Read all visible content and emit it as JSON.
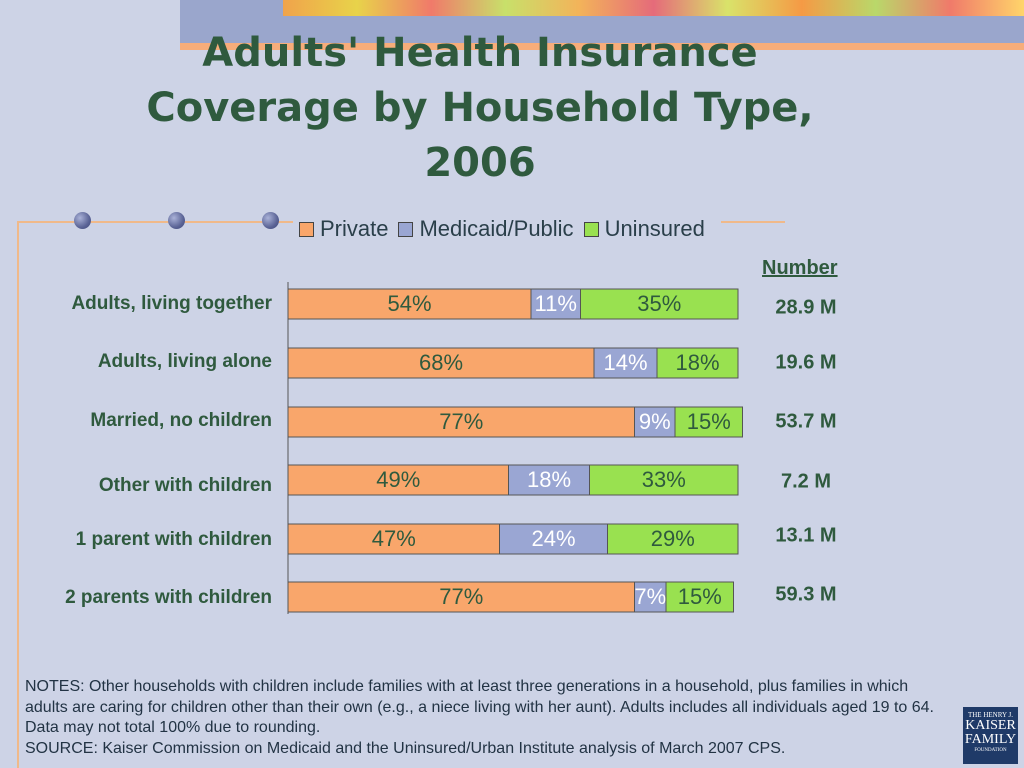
{
  "title": {
    "line1": "Adults' Health Insurance",
    "line2": "Coverage by Household Type,",
    "line3": "2006"
  },
  "number_header": "Number ",
  "colors": {
    "private": "#f9a66b",
    "medicaid": "#9aa6d3",
    "uninsured": "#99e150",
    "text_green": "#2f5a3e"
  },
  "chart_data": {
    "type": "bar",
    "orientation": "horizontal",
    "stacked": true,
    "legend": [
      "Private",
      "Medicaid/Public",
      "Uninsured"
    ],
    "legend_placement": "top",
    "categories": [
      "Adults, living together",
      "Adults, living alone",
      "Married, no children",
      "Other with children",
      "1 parent with children",
      "2 parents with children"
    ],
    "series": [
      {
        "name": "Private",
        "values": [
          54,
          68,
          77,
          49,
          47,
          77
        ],
        "labels": [
          "54%",
          "68%",
          "77%",
          "49%",
          "47%",
          "77%"
        ]
      },
      {
        "name": "Medicaid/Public",
        "values": [
          11,
          14,
          9,
          18,
          24,
          7
        ],
        "labels": [
          "11%",
          "14%",
          "9%",
          "18%",
          "24%",
          "7%"
        ]
      },
      {
        "name": "Uninsured",
        "values": [
          35,
          18,
          15,
          33,
          29,
          15
        ],
        "labels": [
          "35%",
          "18%",
          "15%",
          "33%",
          "29%",
          "15%"
        ]
      }
    ],
    "numbers": [
      "28.9 M",
      "19.6 M",
      "53.7 M",
      "7.2 M",
      "13.1 M",
      "59.3 M"
    ],
    "xlim": [
      0,
      100
    ]
  },
  "notes": {
    "line1": "NOTES: Other households with children include families with at least three generations in a household, plus families in which adults are caring for children other than their own (e.g., a niece living with her aunt). Adults includes all individuals aged 19 to 64. Data may not total 100% due to rounding.",
    "line2": "SOURCE: Kaiser Commission on Medicaid and the Uninsured/Urban Institute analysis of March 2007 CPS."
  },
  "logo": {
    "line1": "THE HENRY J.",
    "line2": "KAISER",
    "line3": "FAMILY",
    "line4": "FOUNDATION"
  }
}
